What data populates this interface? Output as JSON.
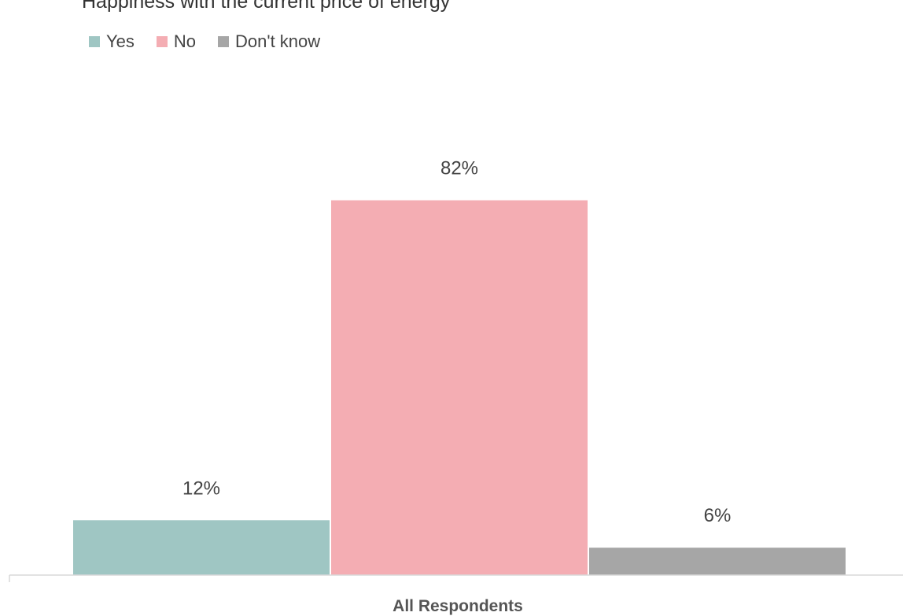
{
  "chart_data": {
    "type": "bar",
    "title": "Happiness with the current price of energy",
    "categories": [
      "All Respondents"
    ],
    "series": [
      {
        "name": "Yes",
        "values": [
          12
        ],
        "color": "#9fc6c3",
        "label": "12%"
      },
      {
        "name": "No",
        "values": [
          82
        ],
        "color": "#f4adb3",
        "label": "82%"
      },
      {
        "name": "Don't know",
        "values": [
          6
        ],
        "color": "#a6a6a6",
        "label": "6%"
      }
    ],
    "ylim": [
      0,
      100
    ],
    "legend_position": "top-left",
    "grid": false
  }
}
